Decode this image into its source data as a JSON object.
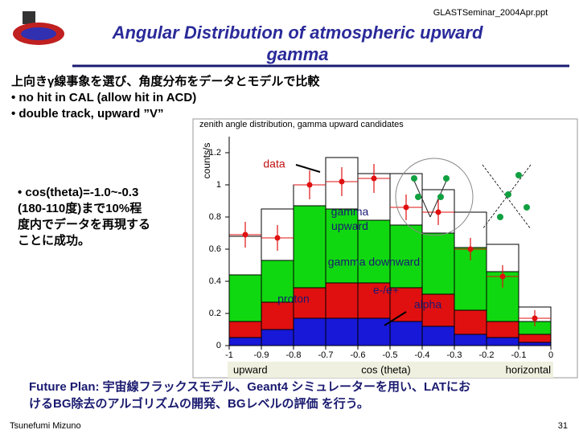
{
  "header": {
    "source": "GLASTSeminar_2004Apr.ppt",
    "title_lines": [
      "Angular Distribution of atmospheric upward",
      "gamma"
    ]
  },
  "bullets": [
    "上向きγ線事象を選び、角度分布をデータとモデルで比較",
    "• no hit in CAL (allow hit in ACD)",
    "• double track, upward ”V”"
  ],
  "side_note": [
    "• cos(theta)=-1.0~-0.3",
    "(180-110度)まで10%程",
    "度内でデータを再現する",
    "ことに成功。"
  ],
  "chart_data": {
    "type": "histogram",
    "title": "zenith angle distribution, gamma upward candidates",
    "y_label": "counts/s",
    "x_label": "cos (theta)",
    "x_left_label": "upward",
    "x_right_label": "horizontal",
    "bins": [
      -1,
      -0.9,
      -0.8,
      -0.7,
      -0.6,
      -0.5,
      -0.4,
      -0.3,
      -0.2,
      -0.1,
      0
    ],
    "xlim": [
      -1,
      0
    ],
    "xticks": [
      {
        "value": -1,
        "label": "-1"
      },
      -0.9,
      -0.8,
      -0.7,
      -0.6,
      -0.5,
      -0.4,
      -0.3,
      -0.2,
      -0.1,
      0
    ],
    "ylim": [
      0,
      1.3
    ],
    "yticks": [
      0,
      0.2,
      0.4,
      0.6,
      0.8,
      1,
      1.2
    ],
    "stacked": true,
    "series": [
      {
        "name": "proton",
        "color": "#1818d8",
        "values": [
          0.05,
          0.1,
          0.17,
          0.17,
          0.17,
          0.15,
          0.12,
          0.07,
          0.05,
          0.02
        ]
      },
      {
        "name": "e-/e+",
        "color": "#e01010",
        "values": [
          0.1,
          0.17,
          0.19,
          0.22,
          0.22,
          0.21,
          0.2,
          0.15,
          0.1,
          0.05
        ]
      },
      {
        "name": "gamma downward",
        "color": "#10d810",
        "values": [
          0.29,
          0.26,
          0.51,
          0.46,
          0.39,
          0.39,
          0.38,
          0.39,
          0.31,
          0.08
        ]
      },
      {
        "name": "gamma upward",
        "color": "#ffffff",
        "values": [
          0.24,
          0.32,
          0.13,
          0.32,
          0.29,
          0.32,
          0.27,
          0.22,
          0.17,
          0.09
        ]
      }
    ],
    "data": {
      "name": "data",
      "color": "#e01010",
      "values": [
        0.69,
        0.67,
        1.0,
        1.02,
        1.04,
        0.86,
        0.83,
        0.6,
        0.43,
        0.17
      ],
      "errors": [
        0.08,
        0.08,
        0.09,
        0.09,
        0.09,
        0.08,
        0.08,
        0.07,
        0.07,
        0.05
      ]
    },
    "alpha_label": "alpha"
  },
  "future_plan": [
    "Future Plan: 宇宙線フラックスモデル、Geant4 シミュレーターを用い、LATにお",
    "けるBG除去のアルゴリズムの開発、BGレベルの評価 を行う。"
  ],
  "footer": {
    "author": "Tsunefumi Mizuno",
    "page": "31"
  }
}
